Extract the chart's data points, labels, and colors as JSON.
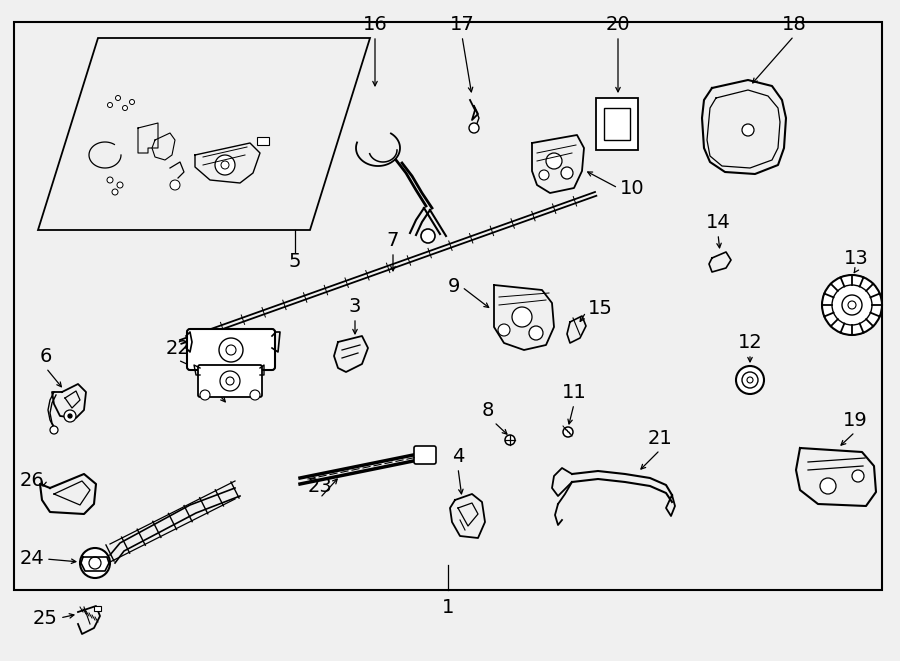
{
  "bg_color": "#f0f0f0",
  "line_color": "#000000",
  "fig_w": 9.0,
  "fig_h": 6.61,
  "dpi": 100,
  "border_lw": 1.5,
  "part_lw": 1.2,
  "label_fs": 13
}
